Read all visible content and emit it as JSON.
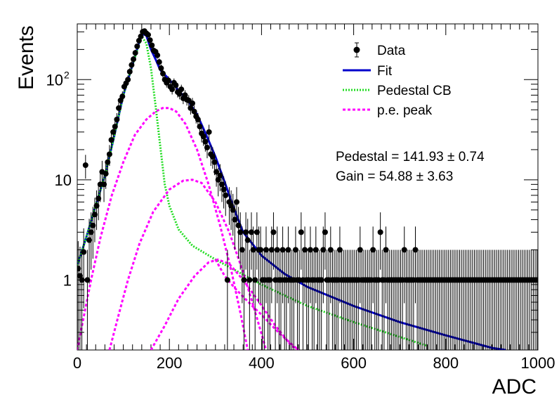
{
  "chart_data": {
    "type": "scatter",
    "title": "",
    "xlabel": "ADC",
    "ylabel": "Events",
    "xlim": [
      0,
      1000
    ],
    "ylim": [
      0.2,
      360
    ],
    "yscale": "log",
    "xticks": [
      {
        "value": 0,
        "label": "0"
      },
      {
        "value": 200,
        "label": "200"
      },
      {
        "value": 400,
        "label": "400"
      },
      {
        "value": 600,
        "label": "600"
      },
      {
        "value": 800,
        "label": "800"
      },
      {
        "value": 1000,
        "label": "1000"
      }
    ],
    "yticks": [
      {
        "value": 1,
        "label": "1",
        "exp": ""
      },
      {
        "value": 10,
        "label": "10",
        "exp": ""
      },
      {
        "value": 100,
        "label": "10",
        "exp": "2"
      }
    ],
    "grid": false,
    "legend_position": "top-right",
    "legend": [
      {
        "label": "Data",
        "style": "marker",
        "color": "#000000"
      },
      {
        "label": "Fit",
        "style": "solid",
        "color": "#0000cc"
      },
      {
        "label": "Pedestal CB",
        "style": "dotted",
        "color": "#22dd22"
      },
      {
        "label": "p.e. peak",
        "style": "dashed",
        "color": "#ff00ff"
      }
    ],
    "annotations": [
      "Pedestal = 141.93 ± 0.74",
      "Gain = 54.88 ± 3.63"
    ],
    "fit_parameters": {
      "pedestal": 141.93,
      "pedestal_err": 0.74,
      "gain": 54.88,
      "gain_err": 3.63
    },
    "data_points": [
      [
        2,
        1.3
      ],
      [
        6,
        1.1
      ],
      [
        10,
        1
      ],
      [
        14,
        1.9
      ],
      [
        18,
        14
      ],
      [
        22,
        1
      ],
      [
        26,
        2.5
      ],
      [
        30,
        3
      ],
      [
        34,
        3.5
      ],
      [
        38,
        4.5
      ],
      [
        42,
        5.5
      ],
      [
        46,
        6.5
      ],
      [
        50,
        9
      ],
      [
        54,
        12
      ],
      [
        58,
        9
      ],
      [
        62,
        11.5
      ],
      [
        66,
        15
      ],
      [
        70,
        18
      ],
      [
        74,
        25
      ],
      [
        78,
        30
      ],
      [
        82,
        34
      ],
      [
        86,
        40
      ],
      [
        90,
        52
      ],
      [
        94,
        62
      ],
      [
        98,
        68
      ],
      [
        102,
        85
      ],
      [
        106,
        92
      ],
      [
        110,
        100
      ],
      [
        114,
        120
      ],
      [
        118,
        140
      ],
      [
        122,
        160
      ],
      [
        126,
        185
      ],
      [
        130,
        215
      ],
      [
        134,
        245
      ],
      [
        138,
        270
      ],
      [
        142,
        300
      ],
      [
        146,
        305
      ],
      [
        150,
        290
      ],
      [
        154,
        280
      ],
      [
        158,
        248
      ],
      [
        162,
        220
      ],
      [
        166,
        195
      ],
      [
        170,
        190
      ],
      [
        174,
        175
      ],
      [
        178,
        150
      ],
      [
        182,
        130
      ],
      [
        186,
        115
      ],
      [
        190,
        100
      ],
      [
        194,
        93
      ],
      [
        198,
        98
      ],
      [
        202,
        85
      ],
      [
        206,
        80
      ],
      [
        210,
        93
      ],
      [
        214,
        88
      ],
      [
        218,
        75
      ],
      [
        222,
        72
      ],
      [
        226,
        80
      ],
      [
        230,
        65
      ],
      [
        234,
        70
      ],
      [
        238,
        63
      ],
      [
        242,
        62
      ],
      [
        246,
        52
      ],
      [
        250,
        58
      ],
      [
        254,
        48
      ],
      [
        258,
        43
      ],
      [
        262,
        40
      ],
      [
        266,
        34
      ],
      [
        270,
        29
      ],
      [
        274,
        27
      ],
      [
        278,
        24
      ],
      [
        282,
        21
      ],
      [
        286,
        30
      ],
      [
        290,
        18
      ],
      [
        294,
        17
      ],
      [
        298,
        15
      ],
      [
        302,
        12
      ],
      [
        306,
        10
      ],
      [
        310,
        11
      ],
      [
        314,
        9
      ],
      [
        318,
        8
      ],
      [
        322,
        7
      ],
      [
        326,
        1
      ],
      [
        330,
        6
      ],
      [
        334,
        5.5
      ],
      [
        338,
        5
      ],
      [
        342,
        4
      ],
      [
        346,
        6
      ],
      [
        350,
        3.5
      ],
      [
        354,
        3
      ],
      [
        358,
        2
      ],
      [
        362,
        1
      ],
      [
        366,
        3
      ],
      [
        370,
        2.5
      ],
      [
        374,
        1
      ],
      [
        378,
        3
      ],
      [
        382,
        2
      ],
      [
        386,
        1
      ],
      [
        390,
        3
      ],
      [
        394,
        2
      ],
      [
        398,
        2
      ],
      [
        402,
        1
      ],
      [
        406,
        1
      ],
      [
        410,
        2
      ],
      [
        414,
        1
      ],
      [
        418,
        1
      ],
      [
        422,
        2
      ],
      [
        426,
        3
      ],
      [
        430,
        1
      ],
      [
        434,
        2
      ],
      [
        438,
        1
      ],
      [
        442,
        1
      ],
      [
        446,
        2
      ],
      [
        450,
        1
      ],
      [
        454,
        1
      ],
      [
        458,
        2
      ],
      [
        462,
        1
      ],
      [
        466,
        1
      ],
      [
        470,
        1
      ],
      [
        474,
        2
      ],
      [
        478,
        1
      ],
      [
        482,
        1
      ],
      [
        486,
        3
      ],
      [
        490,
        1
      ],
      [
        494,
        2
      ],
      [
        498,
        1
      ],
      [
        502,
        1
      ],
      [
        506,
        2
      ],
      [
        510,
        1
      ],
      [
        514,
        1
      ],
      [
        518,
        2
      ],
      [
        522,
        1
      ],
      [
        526,
        1
      ],
      [
        530,
        1
      ],
      [
        534,
        2
      ],
      [
        538,
        3
      ],
      [
        542,
        1
      ],
      [
        546,
        1
      ],
      [
        550,
        2
      ],
      [
        554,
        1
      ],
      [
        558,
        1
      ],
      [
        562,
        1
      ],
      [
        566,
        1
      ],
      [
        570,
        2
      ],
      [
        574,
        1
      ],
      [
        578,
        1
      ],
      [
        582,
        1
      ],
      [
        586,
        1
      ],
      [
        590,
        1
      ],
      [
        594,
        1
      ],
      [
        598,
        1
      ],
      [
        602,
        1
      ],
      [
        606,
        1
      ],
      [
        610,
        1
      ],
      [
        614,
        2
      ],
      [
        618,
        1
      ],
      [
        622,
        1
      ],
      [
        626,
        1
      ],
      [
        630,
        1
      ],
      [
        634,
        1
      ],
      [
        638,
        1
      ],
      [
        642,
        2
      ],
      [
        646,
        1
      ],
      [
        650,
        1
      ],
      [
        654,
        1
      ],
      [
        658,
        3
      ],
      [
        662,
        1
      ],
      [
        666,
        1
      ],
      [
        670,
        2
      ],
      [
        674,
        1
      ],
      [
        678,
        1
      ],
      [
        682,
        1
      ],
      [
        686,
        1
      ],
      [
        690,
        1
      ],
      [
        694,
        1
      ],
      [
        698,
        1
      ],
      [
        702,
        1
      ],
      [
        706,
        1
      ],
      [
        710,
        2
      ],
      [
        714,
        1
      ],
      [
        718,
        1
      ],
      [
        722,
        1
      ],
      [
        726,
        1
      ],
      [
        730,
        1
      ],
      [
        734,
        2
      ],
      [
        738,
        1
      ],
      [
        742,
        1
      ],
      [
        746,
        1
      ],
      [
        750,
        1
      ],
      [
        754,
        1
      ],
      [
        758,
        1
      ],
      [
        762,
        1
      ],
      [
        766,
        1
      ],
      [
        770,
        1
      ],
      [
        774,
        1
      ],
      [
        778,
        1
      ],
      [
        782,
        1
      ],
      [
        786,
        1
      ],
      [
        790,
        1
      ],
      [
        794,
        1
      ],
      [
        798,
        1
      ],
      [
        802,
        1
      ],
      [
        806,
        1
      ],
      [
        810,
        1
      ],
      [
        814,
        1
      ],
      [
        818,
        1
      ],
      [
        822,
        1
      ],
      [
        826,
        1
      ],
      [
        830,
        1
      ],
      [
        834,
        1
      ],
      [
        838,
        1
      ],
      [
        842,
        1
      ],
      [
        846,
        1
      ],
      [
        850,
        1
      ],
      [
        854,
        1
      ],
      [
        858,
        1
      ],
      [
        862,
        1
      ],
      [
        866,
        1
      ],
      [
        870,
        1
      ],
      [
        874,
        1
      ],
      [
        878,
        1
      ],
      [
        882,
        1
      ],
      [
        886,
        1
      ],
      [
        890,
        1
      ],
      [
        894,
        1
      ],
      [
        898,
        1
      ],
      [
        902,
        1
      ],
      [
        906,
        1
      ],
      [
        910,
        1
      ],
      [
        914,
        1
      ],
      [
        918,
        1
      ],
      [
        922,
        1
      ],
      [
        926,
        1
      ],
      [
        930,
        1
      ],
      [
        934,
        1
      ],
      [
        938,
        1
      ],
      [
        942,
        1
      ],
      [
        946,
        1
      ],
      [
        950,
        1
      ],
      [
        954,
        1
      ],
      [
        958,
        1
      ],
      [
        962,
        1
      ],
      [
        966,
        1
      ],
      [
        970,
        1
      ],
      [
        974,
        1
      ],
      [
        978,
        1
      ],
      [
        982,
        1
      ],
      [
        986,
        1
      ],
      [
        990,
        1
      ],
      [
        994,
        1
      ],
      [
        998,
        1
      ]
    ],
    "series": [
      {
        "name": "Fit",
        "style": "solid",
        "color": "#0000cc",
        "points": [
          [
            0,
            1.4
          ],
          [
            20,
            2.7
          ],
          [
            40,
            5.5
          ],
          [
            60,
            11
          ],
          [
            80,
            27
          ],
          [
            100,
            70
          ],
          [
            120,
            140
          ],
          [
            140,
            290
          ],
          [
            150,
            275
          ],
          [
            160,
            200
          ],
          [
            170,
            160
          ],
          [
            180,
            125
          ],
          [
            200,
            100
          ],
          [
            220,
            78
          ],
          [
            240,
            62
          ],
          [
            260,
            45
          ],
          [
            280,
            28
          ],
          [
            300,
            17
          ],
          [
            320,
            9.5
          ],
          [
            340,
            5.2
          ],
          [
            360,
            3
          ],
          [
            380,
            2.3
          ],
          [
            400,
            1.75
          ],
          [
            450,
            1.15
          ],
          [
            500,
            0.85
          ],
          [
            600,
            0.55
          ],
          [
            700,
            0.38
          ],
          [
            800,
            0.28
          ],
          [
            900,
            0.21
          ],
          [
            930,
            0.2
          ]
        ]
      },
      {
        "name": "Pedestal CB",
        "style": "dotted",
        "color": "#22dd22",
        "points": [
          [
            0,
            1.4
          ],
          [
            20,
            2.7
          ],
          [
            40,
            5.5
          ],
          [
            60,
            11
          ],
          [
            80,
            27
          ],
          [
            100,
            70
          ],
          [
            120,
            140
          ],
          [
            140,
            270
          ],
          [
            150,
            230
          ],
          [
            160,
            130
          ],
          [
            170,
            55
          ],
          [
            180,
            22
          ],
          [
            190,
            9
          ],
          [
            200,
            5.5
          ],
          [
            220,
            3.2
          ],
          [
            250,
            2.2
          ],
          [
            300,
            1.6
          ],
          [
            350,
            1.2
          ],
          [
            400,
            0.9
          ],
          [
            450,
            0.7
          ],
          [
            500,
            0.55
          ],
          [
            600,
            0.38
          ],
          [
            700,
            0.27
          ],
          [
            760,
            0.22
          ]
        ]
      },
      {
        "name": "p.e. peak 1",
        "style": "dashed",
        "color": "#ff00ff",
        "points": [
          [
            0,
            0.2
          ],
          [
            15,
            0.45
          ],
          [
            30,
            1
          ],
          [
            50,
            2.6
          ],
          [
            75,
            7
          ],
          [
            100,
            15
          ],
          [
            125,
            28
          ],
          [
            150,
            40
          ],
          [
            170,
            48
          ],
          [
            185,
            52
          ],
          [
            200,
            52
          ],
          [
            215,
            48
          ],
          [
            235,
            36
          ],
          [
            260,
            20
          ],
          [
            285,
            9
          ],
          [
            310,
            3.5
          ],
          [
            335,
            1.2
          ],
          [
            355,
            0.45
          ],
          [
            370,
            0.2
          ]
        ]
      },
      {
        "name": "p.e. peak 2",
        "style": "dashed",
        "color": "#ff00ff",
        "points": [
          [
            70,
            0.2
          ],
          [
            90,
            0.45
          ],
          [
            110,
            1
          ],
          [
            135,
            2.3
          ],
          [
            165,
            4.8
          ],
          [
            200,
            8
          ],
          [
            230,
            9.8
          ],
          [
            250,
            10
          ],
          [
            270,
            9.3
          ],
          [
            300,
            6
          ],
          [
            330,
            3
          ],
          [
            360,
            1.2
          ],
          [
            385,
            0.5
          ],
          [
            410,
            0.2
          ]
        ]
      },
      {
        "name": "p.e. peak 3",
        "style": "dashed",
        "color": "#ff00ff",
        "points": [
          [
            160,
            0.2
          ],
          [
            190,
            0.35
          ],
          [
            220,
            0.65
          ],
          [
            255,
            1.1
          ],
          [
            285,
            1.5
          ],
          [
            305,
            1.6
          ],
          [
            330,
            1.45
          ],
          [
            360,
            1
          ],
          [
            395,
            0.6
          ],
          [
            430,
            0.35
          ],
          [
            465,
            0.22
          ],
          [
            480,
            0.2
          ]
        ]
      },
      {
        "name": "p.e. tail",
        "style": "dashed",
        "color": "#ff00ff",
        "points": [
          [
            300,
            1.6
          ],
          [
            320,
            1.1
          ],
          [
            340,
            0.85
          ],
          [
            360,
            0.68
          ],
          [
            380,
            0.55
          ],
          [
            400,
            0.45
          ],
          [
            420,
            0.36
          ],
          [
            440,
            0.29
          ],
          [
            460,
            0.24
          ],
          [
            480,
            0.2
          ]
        ]
      }
    ]
  }
}
